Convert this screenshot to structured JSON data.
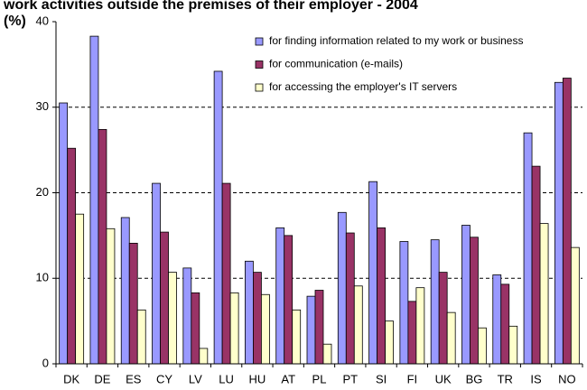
{
  "chart_data": {
    "type": "bar",
    "title": "work activities outside the premises of their employer - 2004",
    "y_label": "(%)",
    "categories": [
      "DK",
      "DE",
      "ES",
      "CY",
      "LV",
      "LU",
      "HU",
      "AT",
      "PL",
      "PT",
      "SI",
      "FI",
      "UK",
      "BG",
      "TR",
      "IS",
      "NO"
    ],
    "series": [
      {
        "name": "for finding information related to my work or business",
        "color": "#9999ff",
        "values": [
          30.5,
          38.3,
          17.1,
          21.1,
          11.2,
          34.2,
          12.0,
          15.9,
          7.9,
          17.7,
          21.3,
          14.3,
          14.5,
          16.2,
          10.4,
          27.0,
          32.9
        ]
      },
      {
        "name": "for communication (e-mails)",
        "color": "#993366",
        "values": [
          25.2,
          27.4,
          14.1,
          15.4,
          8.3,
          21.1,
          10.7,
          15.0,
          8.6,
          15.3,
          15.9,
          7.3,
          10.7,
          14.8,
          9.3,
          23.1,
          33.4
        ]
      },
      {
        "name": "for accessing the employer's IT servers",
        "color": "#ffffcc",
        "values": [
          17.5,
          15.8,
          6.3,
          10.7,
          1.8,
          8.3,
          8.1,
          6.3,
          2.3,
          9.1,
          5.0,
          8.9,
          6.0,
          4.2,
          4.4,
          16.4,
          13.6
        ]
      }
    ],
    "ylim": [
      0,
      40
    ],
    "yticks": [
      0,
      10,
      20,
      30,
      40
    ],
    "grid": true,
    "legend": "top-right"
  }
}
